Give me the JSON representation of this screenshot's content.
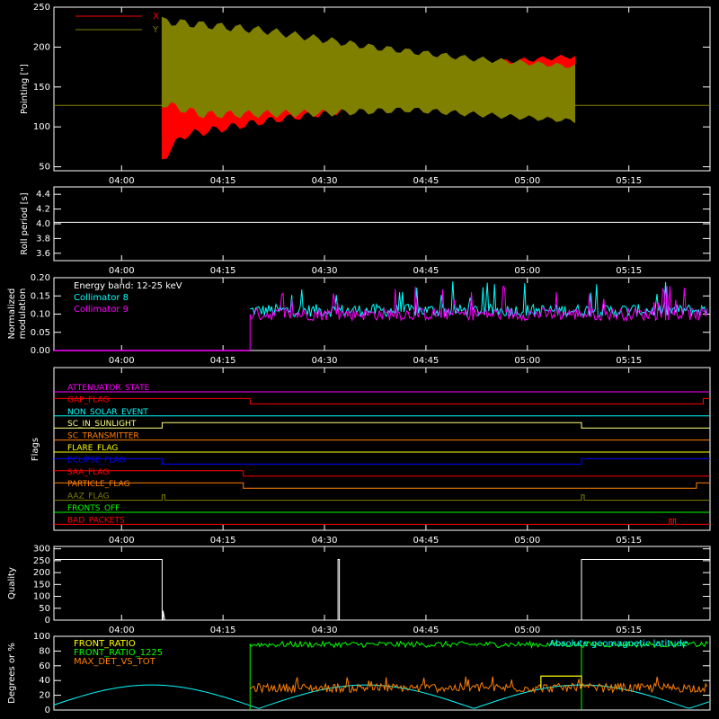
{
  "time_ticks": [
    "04:00",
    "04:15",
    "04:30",
    "04:45",
    "05:00",
    "05:15"
  ],
  "chart_data": [
    {
      "type": "line",
      "ylabel": "Pointing [\"]",
      "ylim": [
        45,
        250
      ],
      "yticks": [
        50,
        100,
        150,
        200,
        250
      ],
      "xlim": [
        "03:50",
        "05:27"
      ],
      "legend_position": "top-left",
      "series": [
        {
          "name": "X",
          "color": "#ff0000",
          "start": "04:06",
          "end": "05:07",
          "envelope_lower": [
            [
              0,
              60
            ],
            [
              0.05,
              90
            ],
            [
              0.25,
              108
            ],
            [
              0.5,
              125
            ],
            [
              0.75,
              133
            ],
            [
              1,
              138
            ]
          ],
          "envelope_upper": [
            [
              0,
              140
            ],
            [
              0.1,
              135
            ],
            [
              0.3,
              130
            ],
            [
              0.55,
              160
            ],
            [
              0.8,
              180
            ],
            [
              1,
              188
            ]
          ]
        },
        {
          "name": "Y",
          "color": "#808000",
          "start": "04:06",
          "end": "05:07",
          "envelope_lower": [
            [
              0,
              130
            ],
            [
              0.1,
              116
            ],
            [
              0.4,
              118
            ],
            [
              0.6,
              122
            ],
            [
              1,
              108
            ]
          ],
          "envelope_upper": [
            [
              0,
              232
            ],
            [
              0.25,
              220
            ],
            [
              0.5,
              200
            ],
            [
              0.75,
              185
            ],
            [
              1,
              175
            ]
          ]
        }
      ],
      "baseline_value": 127
    },
    {
      "type": "line",
      "ylabel": "Roll period [s]",
      "ylim": [
        3.5,
        4.5
      ],
      "yticks": [
        3.6,
        3.8,
        4.0,
        4.2,
        4.4
      ],
      "series": [
        {
          "name": "",
          "color": "#ffffff",
          "value": 4.02
        }
      ]
    },
    {
      "type": "line",
      "ylabel": "Normalized modulation",
      "ylim": [
        0,
        0.2
      ],
      "yticks": [
        0.0,
        0.05,
        0.1,
        0.15,
        0.2
      ],
      "annotation": "Energy band: 12-25 keV",
      "step_time": "04:19",
      "series": [
        {
          "name": "Collimator 8",
          "color": "#00ffff",
          "mean": 0.11
        },
        {
          "name": "Collimator 9",
          "color": "#ff00ff",
          "mean": 0.1
        }
      ]
    },
    {
      "type": "line",
      "ylabel": "Flags",
      "flags": [
        {
          "name": "ATTENUATOR_STATE",
          "color": "#ff00ff",
          "steps": [
            [
              "03:50",
              0
            ]
          ]
        },
        {
          "name": "GAP_FLAG",
          "color": "#ff0000",
          "steps": [
            [
              "03:50",
              1
            ],
            [
              "04:19",
              0
            ],
            [
              "05:26",
              1
            ]
          ]
        },
        {
          "name": "NON_SOLAR_EVENT",
          "color": "#00ffff",
          "steps": [
            [
              "03:50",
              0
            ]
          ]
        },
        {
          "name": "SC_IN_SUNLIGHT",
          "color": "#ffff80",
          "steps": [
            [
              "03:50",
              0
            ],
            [
              "04:06",
              1
            ],
            [
              "05:08",
              0
            ]
          ]
        },
        {
          "name": "SC_TRANSMITTER",
          "color": "#ff8000",
          "steps": [
            [
              "03:50",
              0
            ]
          ]
        },
        {
          "name": "FLARE_FLAG",
          "color": "#ffff00",
          "steps": [
            [
              "03:50",
              0
            ]
          ]
        },
        {
          "name": "ECLIPSE_FLAG",
          "color": "#0000ff",
          "steps": [
            [
              "03:50",
              1
            ],
            [
              "04:06",
              0
            ],
            [
              "05:08",
              1
            ]
          ]
        },
        {
          "name": "SAA_FLAG",
          "color": "#ff0000",
          "steps": [
            [
              "03:50",
              1
            ],
            [
              "04:18",
              0
            ]
          ]
        },
        {
          "name": "PARTICLE_FLAG",
          "color": "#ff8000",
          "steps": [
            [
              "03:50",
              1
            ],
            [
              "04:18",
              0
            ],
            [
              "05:25",
              1
            ]
          ]
        },
        {
          "name": "AAZ_FLAG",
          "color": "#808000",
          "steps": [
            [
              "03:50",
              0
            ],
            [
              "04:06",
              1
            ],
            [
              "04:06.4",
              0
            ],
            [
              "05:08",
              1
            ],
            [
              "05:08.4",
              0
            ]
          ]
        },
        {
          "name": "FRONTS_OFF",
          "color": "#00ff00",
          "steps": [
            [
              "03:50",
              0
            ]
          ]
        },
        {
          "name": "BAD_PACKETS",
          "color": "#ff0000",
          "steps": [
            [
              "03:50",
              0
            ],
            [
              "05:21",
              1
            ],
            [
              "05:21.3",
              0
            ],
            [
              "05:21.6",
              1
            ],
            [
              "05:21.9",
              0
            ]
          ]
        }
      ]
    },
    {
      "type": "line",
      "ylabel": "Quality",
      "ylim": [
        0,
        310
      ],
      "yticks": [
        0,
        50,
        100,
        150,
        200,
        250,
        300
      ],
      "series": [
        {
          "name": "",
          "color": "#ffffff",
          "steps": [
            [
              "03:50",
              255
            ],
            [
              "04:06",
              0
            ],
            [
              "04:32",
              255
            ],
            [
              "04:32.2",
              0
            ],
            [
              "05:08",
              255
            ]
          ]
        }
      ]
    },
    {
      "type": "line",
      "ylabel": "Degrees or %",
      "ylim": [
        0,
        100
      ],
      "yticks": [
        0,
        20,
        40,
        60,
        80,
        100
      ],
      "series": [
        {
          "name": "FRONT_RATIO",
          "color": "#ffff00"
        },
        {
          "name": "FRONT_RATIO_1225",
          "color": "#00ff00"
        },
        {
          "name": "MAX_DET_VS_TOT",
          "color": "#ff8000"
        }
      ],
      "annotation": "Absolute geomagnetic latitude",
      "annotation_color": "#00ffff"
    }
  ]
}
